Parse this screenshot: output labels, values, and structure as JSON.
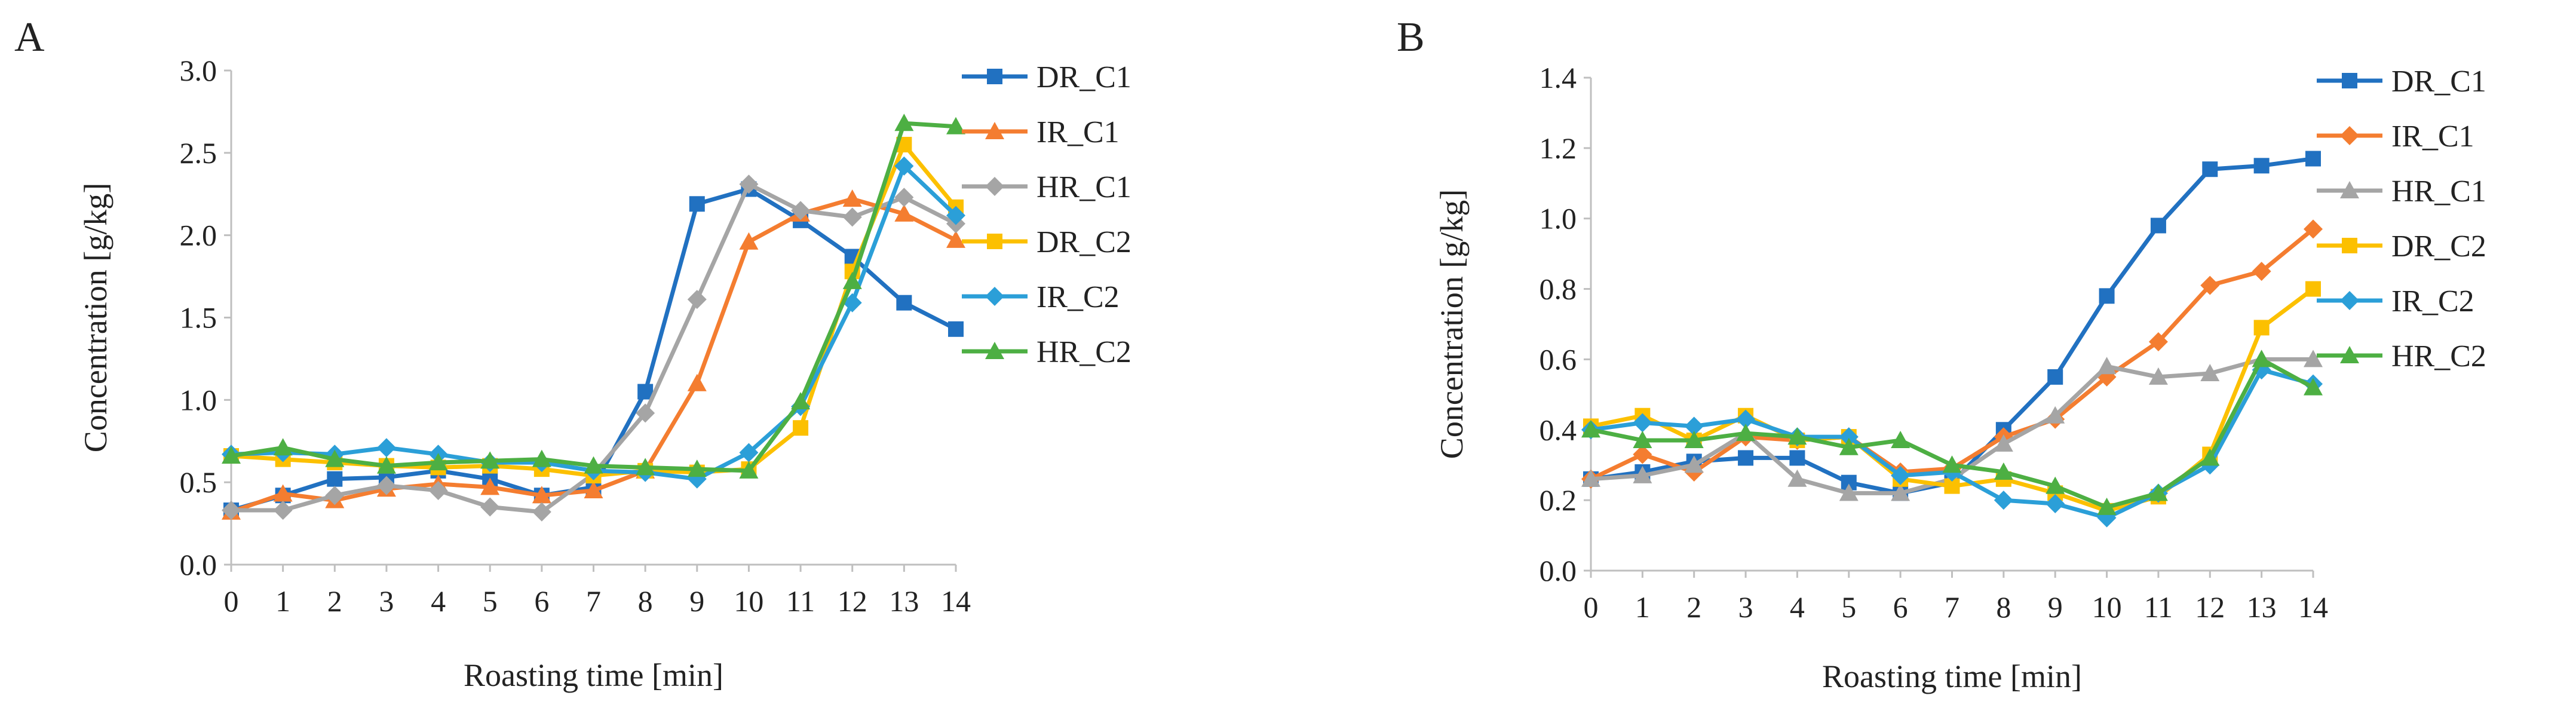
{
  "chart_data": [
    {
      "panel": "A",
      "type": "line",
      "xlabel": "Roasting time [min]",
      "ylabel": "Concentration [g/kg]",
      "ylim": [
        0,
        3.0
      ],
      "yticks": [
        "0.0",
        "0.5",
        "1.0",
        "1.5",
        "2.0",
        "2.5",
        "3.0"
      ],
      "x": [
        0,
        1,
        2,
        3,
        4,
        5,
        6,
        7,
        8,
        9,
        10,
        11,
        12,
        13,
        14
      ],
      "grid": false,
      "legend": "right",
      "series": [
        {
          "name": "DR_C1",
          "color": "#2171C1",
          "marker": "square",
          "values": [
            0.33,
            0.42,
            0.52,
            0.53,
            0.57,
            0.52,
            0.42,
            0.47,
            1.05,
            2.19,
            2.28,
            2.09,
            1.87,
            1.59,
            1.43
          ]
        },
        {
          "name": "IR_C1",
          "color": "#F47D30",
          "marker": "triangle",
          "values": [
            0.32,
            0.43,
            0.39,
            0.46,
            0.49,
            0.47,
            0.42,
            0.45,
            0.57,
            1.1,
            1.96,
            2.13,
            2.22,
            2.13,
            1.97
          ]
        },
        {
          "name": "HR_C1",
          "color": "#A5A5A5",
          "marker": "diamond",
          "values": [
            0.33,
            0.33,
            0.42,
            0.48,
            0.45,
            0.35,
            0.32,
            0.55,
            0.92,
            1.61,
            2.31,
            2.15,
            2.11,
            2.23,
            2.07
          ]
        },
        {
          "name": "DR_C2",
          "color": "#FCC000",
          "marker": "square",
          "values": [
            0.66,
            0.64,
            0.62,
            0.6,
            0.59,
            0.6,
            0.58,
            0.54,
            0.57,
            0.56,
            0.58,
            0.83,
            1.78,
            2.55,
            2.17
          ]
        },
        {
          "name": "IR_C2",
          "color": "#2B9FD8",
          "marker": "diamond",
          "values": [
            0.67,
            0.68,
            0.67,
            0.71,
            0.67,
            0.62,
            0.62,
            0.57,
            0.56,
            0.52,
            0.68,
            0.96,
            1.59,
            2.42,
            2.12
          ]
        },
        {
          "name": "HR_C2",
          "color": "#4DAF43",
          "marker": "triangle",
          "values": [
            0.66,
            0.71,
            0.64,
            0.6,
            0.62,
            0.63,
            0.64,
            0.6,
            0.59,
            0.58,
            0.57,
            0.99,
            1.72,
            2.68,
            2.66
          ]
        }
      ]
    },
    {
      "panel": "B",
      "type": "line",
      "xlabel": "Roasting time [min]",
      "ylabel": "Concentration [g/kg]",
      "ylim": [
        0,
        1.4
      ],
      "yticks": [
        "0.0",
        "0.2",
        "0.4",
        "0.6",
        "0.8",
        "1.0",
        "1.2",
        "1.4"
      ],
      "x": [
        0,
        1,
        2,
        3,
        4,
        5,
        6,
        7,
        8,
        9,
        10,
        11,
        12,
        13,
        14
      ],
      "grid": false,
      "legend": "right",
      "series": [
        {
          "name": "DR_C1",
          "color": "#2171C1",
          "marker": "square",
          "values": [
            0.26,
            0.28,
            0.31,
            0.32,
            0.32,
            0.25,
            0.22,
            0.25,
            0.4,
            0.55,
            0.78,
            0.98,
            1.14,
            1.15,
            1.17
          ]
        },
        {
          "name": "IR_C1",
          "color": "#F47D30",
          "marker": "diamond",
          "values": [
            0.26,
            0.33,
            0.28,
            0.38,
            0.37,
            0.38,
            0.28,
            0.29,
            0.38,
            0.43,
            0.55,
            0.65,
            0.81,
            0.85,
            0.97
          ]
        },
        {
          "name": "HR_C1",
          "color": "#A5A5A5",
          "marker": "triangle",
          "values": [
            0.26,
            0.27,
            0.3,
            0.39,
            0.26,
            0.22,
            0.22,
            0.26,
            0.36,
            0.44,
            0.58,
            0.55,
            0.56,
            0.6,
            0.6
          ]
        },
        {
          "name": "DR_C2",
          "color": "#FCC000",
          "marker": "square",
          "values": [
            0.41,
            0.44,
            0.37,
            0.44,
            0.37,
            0.38,
            0.26,
            0.24,
            0.26,
            0.22,
            0.17,
            0.21,
            0.33,
            0.69,
            0.8
          ]
        },
        {
          "name": "IR_C2",
          "color": "#2B9FD8",
          "marker": "diamond",
          "values": [
            0.4,
            0.42,
            0.41,
            0.43,
            0.38,
            0.38,
            0.27,
            0.28,
            0.2,
            0.19,
            0.15,
            0.22,
            0.3,
            0.57,
            0.53
          ]
        },
        {
          "name": "HR_C2",
          "color": "#4DAF43",
          "marker": "triangle",
          "values": [
            0.4,
            0.37,
            0.37,
            0.39,
            0.38,
            0.35,
            0.37,
            0.3,
            0.28,
            0.24,
            0.18,
            0.22,
            0.32,
            0.6,
            0.52
          ]
        }
      ]
    }
  ]
}
